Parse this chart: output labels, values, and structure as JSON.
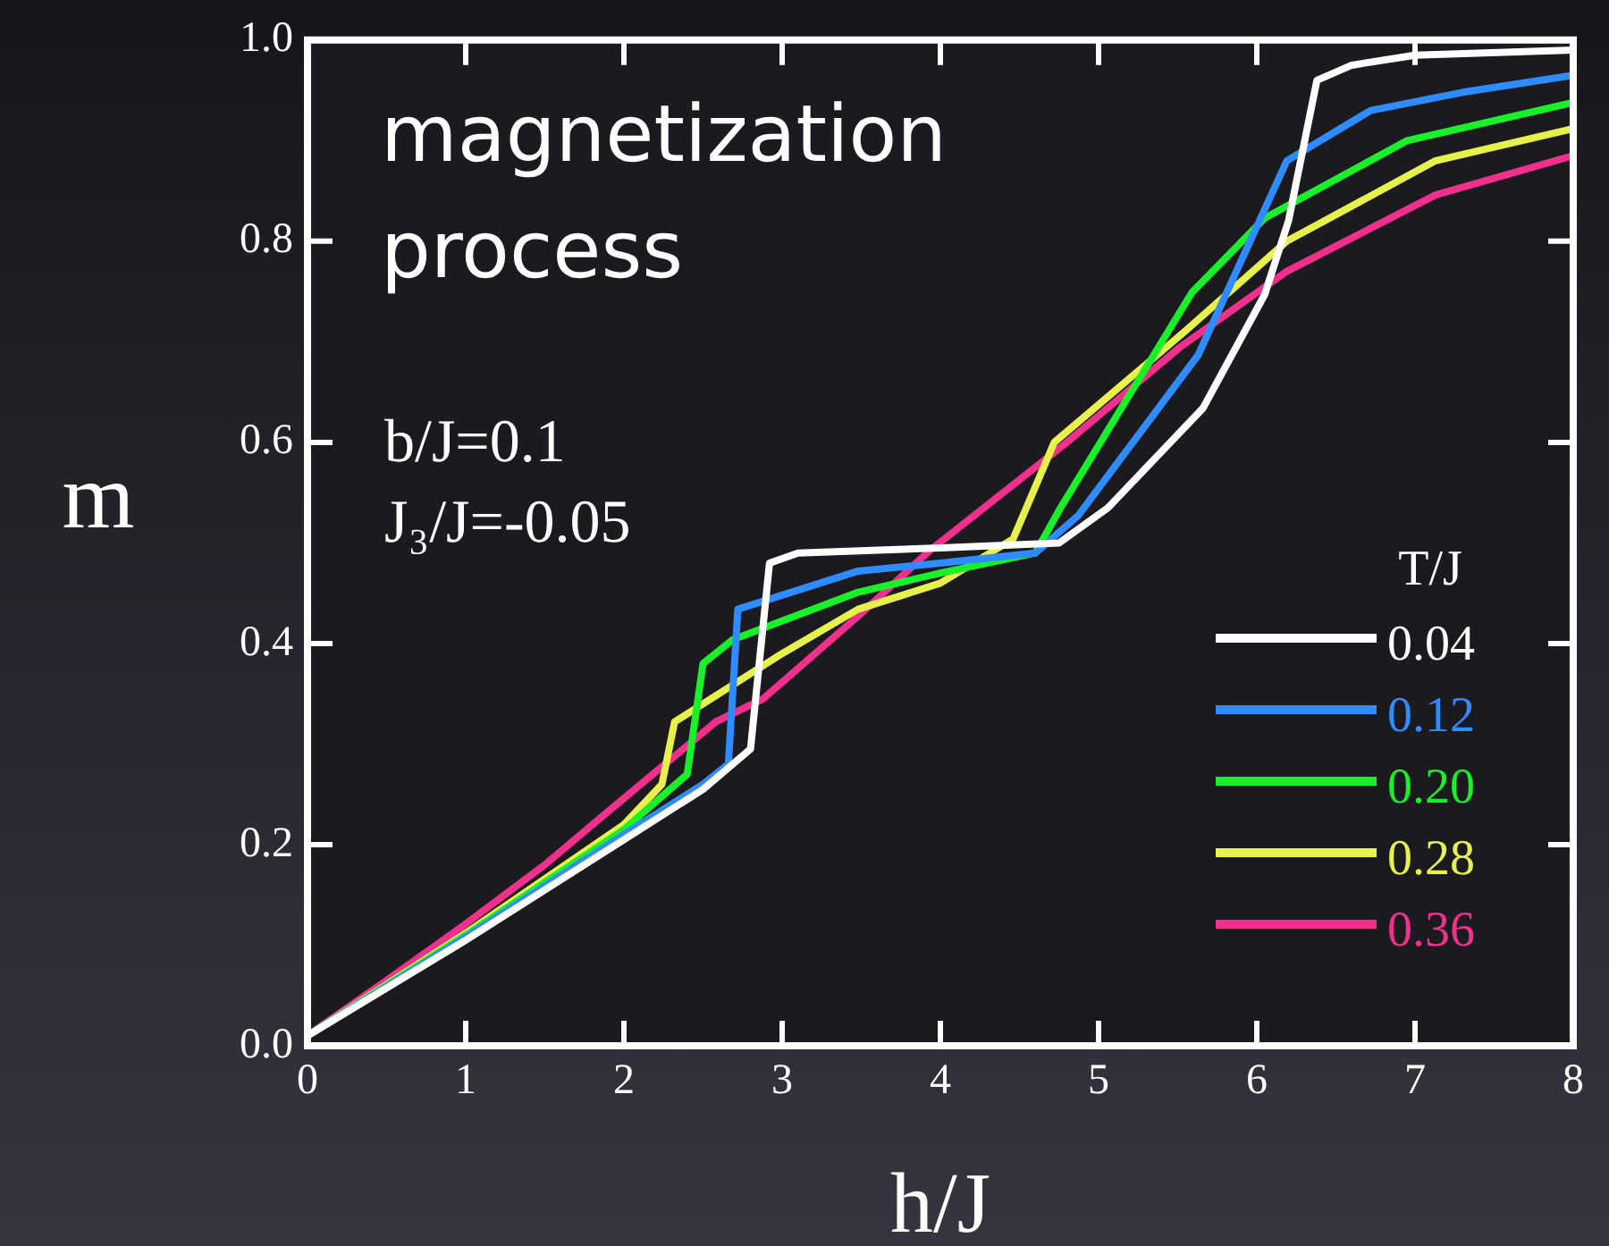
{
  "chart_data": {
    "type": "line",
    "title": "magnetization process",
    "xlabel": "h/J",
    "ylabel": "m",
    "legend_title": "T/J",
    "annotations": [
      "b/J=0.1",
      "J₃/J=-0.05"
    ],
    "xlim": [
      0,
      8
    ],
    "ylim": [
      0,
      1
    ],
    "xticks": [
      0,
      1,
      2,
      3,
      4,
      5,
      6,
      7,
      8
    ],
    "yticks": [
      {
        "value": 0,
        "label": "0.0"
      },
      0.2,
      0.4,
      0.6,
      0.8,
      {
        "value": 1,
        "label": "1.0"
      }
    ],
    "legend": "right",
    "grid": false,
    "marker": "none",
    "line_style": "solid",
    "series": [
      {
        "name": "0.04",
        "color": "#ffffff",
        "x": [
          0,
          1,
          2,
          2.5,
          2.8,
          2.92,
          3.1,
          4,
          4.75,
          5.06,
          5.66,
          6.05,
          6.2,
          6.38,
          6.6,
          7,
          8
        ],
        "values": [
          0.01,
          0.105,
          0.205,
          0.255,
          0.295,
          0.48,
          0.49,
          0.495,
          0.5,
          0.535,
          0.634,
          0.747,
          0.82,
          0.96,
          0.975,
          0.985,
          0.99
        ]
      },
      {
        "name": "0.12",
        "color": "#2f8cff",
        "x": [
          0,
          1,
          2,
          2.5,
          2.66,
          2.72,
          3.48,
          4,
          4.6,
          4.87,
          5.63,
          6.19,
          6.72,
          7.3,
          8
        ],
        "values": [
          0.01,
          0.108,
          0.21,
          0.26,
          0.28,
          0.434,
          0.472,
          0.48,
          0.49,
          0.527,
          0.687,
          0.88,
          0.93,
          0.948,
          0.965
        ]
      },
      {
        "name": "0.20",
        "color": "#19f02a",
        "x": [
          0,
          1,
          2,
          2.4,
          2.5,
          2.69,
          3.48,
          4,
          4.6,
          4.76,
          5.59,
          6.05,
          6.95,
          8
        ],
        "values": [
          0.01,
          0.11,
          0.215,
          0.27,
          0.38,
          0.404,
          0.451,
          0.47,
          0.49,
          0.535,
          0.749,
          0.823,
          0.9,
          0.938
        ]
      },
      {
        "name": "0.28",
        "color": "#e8f04a",
        "x": [
          0,
          1,
          2,
          2.24,
          2.32,
          3,
          3.48,
          4,
          4.46,
          4.72,
          5.55,
          6.19,
          7.13,
          8
        ],
        "values": [
          0.01,
          0.112,
          0.22,
          0.26,
          0.322,
          0.39,
          0.434,
          0.46,
          0.504,
          0.6,
          0.711,
          0.8,
          0.88,
          0.912
        ]
      },
      {
        "name": "0.36",
        "color": "#f0308c",
        "x": [
          0,
          0.5,
          0.99,
          1.5,
          1.9,
          2.58,
          2.88,
          3.5,
          3.93,
          4.8,
          5.51,
          6.19,
          7.13,
          8
        ],
        "values": [
          0.01,
          0.065,
          0.12,
          0.18,
          0.233,
          0.322,
          0.345,
          0.43,
          0.492,
          0.6,
          0.694,
          0.77,
          0.846,
          0.885
        ]
      }
    ]
  }
}
